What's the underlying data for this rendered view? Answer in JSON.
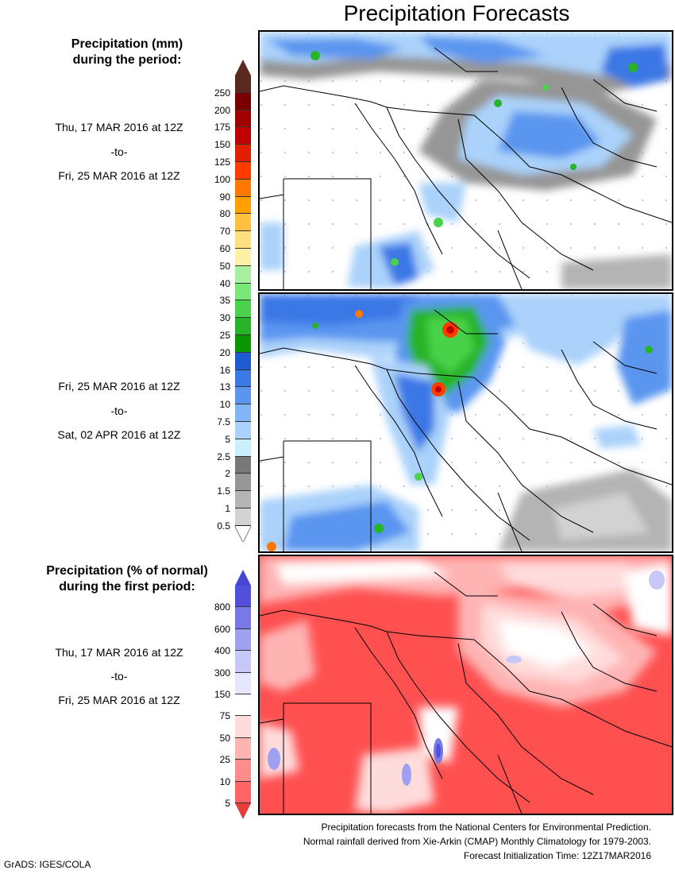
{
  "title": "Precipitation Forecasts",
  "mm_legend": {
    "header_line1": "Precipitation (mm)",
    "header_line2": "during the period:",
    "levels": [
      "250",
      "200",
      "175",
      "150",
      "125",
      "100",
      "90",
      "80",
      "70",
      "60",
      "50",
      "40",
      "35",
      "30",
      "25",
      "20",
      "16",
      "13",
      "10",
      "7.5",
      "5",
      "2.5",
      "2",
      "1.5",
      "1",
      "0.5"
    ],
    "colors": [
      "#5a2a1e",
      "#7a0000",
      "#a00000",
      "#c00000",
      "#e01e00",
      "#ff3c00",
      "#ff7800",
      "#ffa000",
      "#ffc040",
      "#ffe080",
      "#fff0a8",
      "#a8f0a0",
      "#78e878",
      "#4ad24a",
      "#28b428",
      "#0a9600",
      "#1e5ad2",
      "#3a78e6",
      "#5a96f0",
      "#82b4f8",
      "#aad2fa",
      "#c8f0ff",
      "#787878",
      "#969696",
      "#b4b4b4",
      "#d2d2d2"
    ],
    "top_color": "#5a2a1e",
    "bottom_color": "#ffffff"
  },
  "period1": {
    "start": "Thu, 17 MAR 2016 at 12Z",
    "sep": "-to-",
    "end": "Fri, 25 MAR 2016 at 12Z"
  },
  "period2": {
    "start": "Fri, 25 MAR 2016 at 12Z",
    "sep": "-to-",
    "end": "Sat, 02 APR 2016 at 12Z"
  },
  "pct_legend": {
    "header_line1": "Precipitation (% of normal)",
    "header_line2": "during the first period:",
    "levels": [
      "800",
      "600",
      "400",
      "300",
      "150",
      "75",
      "50",
      "25",
      "10",
      "5"
    ],
    "colors": [
      "#5050dc",
      "#7878e6",
      "#a0a0f0",
      "#c8c8f8",
      "#e6e6ff",
      "#ffffff",
      "#ffdcdc",
      "#ffb4b4",
      "#ff8c8c",
      "#ff6464"
    ],
    "top_color": "#4646d2",
    "bottom_color": "#e63c3c"
  },
  "period3": {
    "start": "Thu, 17 MAR 2016 at 12Z",
    "sep": "-to-",
    "end": "Fri, 25 MAR 2016 at 12Z"
  },
  "footer": {
    "line1": "Precipitation forecasts from the National Centers for Environmental Prediction.",
    "line2": "Normal rainfall derived from Xie-Arkin (CMAP) Monthly Climatology for 1979-2003.",
    "line3": "Forecast Initialization Time: 12Z17MAR2016"
  },
  "credit": "GrADS: IGES/COLA"
}
